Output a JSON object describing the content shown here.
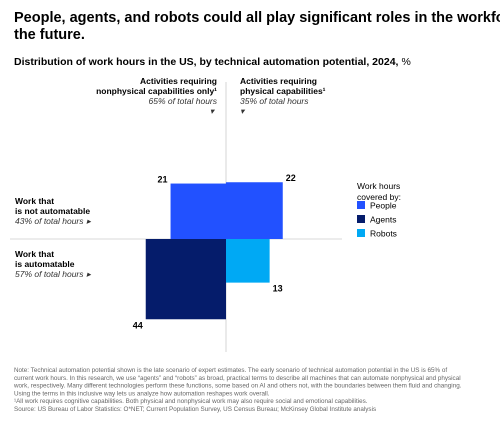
{
  "chart_data": {
    "type": "quadrant-squares",
    "title": [
      "People, agents, and robots could all play significant roles in the workforce of",
      "the future."
    ],
    "subtitle": "Distribution of work hours in the US, by technical automation potential, 2024,",
    "subtitle_unit": "%",
    "columns": [
      {
        "label": [
          "Activities requiring",
          "nonphysical capabilities only¹"
        ],
        "share": "65% of total hours"
      },
      {
        "label": [
          "Activities requiring",
          "physical capabilities¹"
        ],
        "share": "35% of total hours"
      }
    ],
    "rows": [
      {
        "label": [
          "Work that",
          "is not automatable"
        ],
        "share": "43% of total hours"
      },
      {
        "label": [
          "Work that",
          "is automatable"
        ],
        "share": "57% of total hours"
      }
    ],
    "legend_title": [
      "Work hours",
      "covered by:"
    ],
    "series": [
      {
        "name": "People",
        "color": "#2251ff",
        "values": [
          [
            21,
            22
          ],
          [
            null,
            null
          ]
        ]
      },
      {
        "name": "Agents",
        "color": "#051c6b",
        "values": [
          [
            null,
            null
          ],
          [
            44,
            null
          ]
        ]
      },
      {
        "name": "Robots",
        "color": "#00a9f4",
        "values": [
          [
            null,
            null
          ],
          [
            null,
            13
          ]
        ]
      }
    ],
    "notes": [
      "Note: Technical automation potential shown is the late scenario of expert estimates. The early scenario of technical automation potential in the US is 65% of",
      "current work hours. In this research, we use “agents” and “robots” as broad, practical terms to describe all machines that can automate nonphysical and physical",
      "work, respectively. Many different technologies perform these functions, some based on AI and others not, with the boundaries between them fluid and changing.",
      "Using the terms in this inclusive way lets us analyze how automation reshapes work overall.",
      "¹All work requires cognitive capabilities. Both physical and nonphysical work may also require social and emotional capabilities.",
      "Source: US Bureau of Labor Statistics: O*NET; Current Population Survey, US Census Bureau; McKinsey Global Institute analysis"
    ]
  }
}
